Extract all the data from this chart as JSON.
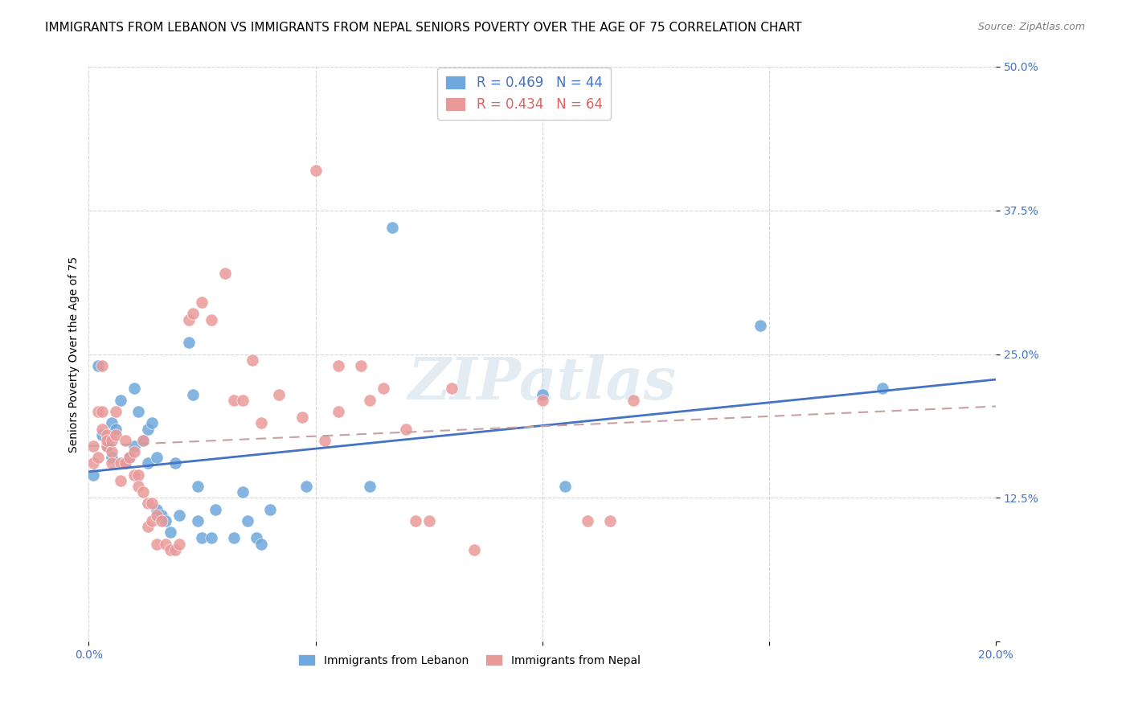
{
  "title": "IMMIGRANTS FROM LEBANON VS IMMIGRANTS FROM NEPAL SENIORS POVERTY OVER THE AGE OF 75 CORRELATION CHART",
  "source": "Source: ZipAtlas.com",
  "xlabel_label": "",
  "ylabel_label": "Seniors Poverty Over the Age of 75",
  "xlim": [
    0.0,
    0.2
  ],
  "ylim": [
    0.0,
    0.5
  ],
  "xticks": [
    0.0,
    0.05,
    0.1,
    0.15,
    0.2
  ],
  "yticks": [
    0.0,
    0.125,
    0.25,
    0.375,
    0.5
  ],
  "xtick_labels": [
    "0.0%",
    "",
    "",
    "",
    "20.0%"
  ],
  "ytick_labels": [
    "",
    "12.5%",
    "25.0%",
    "37.5%",
    "50.0%"
  ],
  "lebanon_color": "#6fa8dc",
  "nepal_color": "#ea9999",
  "lebanon_R": 0.469,
  "lebanon_N": 44,
  "nepal_R": 0.434,
  "nepal_N": 64,
  "lebanon_line_color": "#4472c4",
  "nepal_line_color": "#ea9999",
  "watermark": "ZIPatlas",
  "lebanon_scatter": [
    [
      0.001,
      0.145
    ],
    [
      0.002,
      0.24
    ],
    [
      0.003,
      0.18
    ],
    [
      0.004,
      0.17
    ],
    [
      0.005,
      0.16
    ],
    [
      0.005,
      0.19
    ],
    [
      0.006,
      0.185
    ],
    [
      0.007,
      0.21
    ],
    [
      0.008,
      0.155
    ],
    [
      0.009,
      0.16
    ],
    [
      0.01,
      0.17
    ],
    [
      0.01,
      0.22
    ],
    [
      0.011,
      0.2
    ],
    [
      0.012,
      0.175
    ],
    [
      0.013,
      0.155
    ],
    [
      0.013,
      0.185
    ],
    [
      0.014,
      0.19
    ],
    [
      0.015,
      0.16
    ],
    [
      0.015,
      0.115
    ],
    [
      0.016,
      0.11
    ],
    [
      0.017,
      0.105
    ],
    [
      0.018,
      0.095
    ],
    [
      0.019,
      0.155
    ],
    [
      0.02,
      0.11
    ],
    [
      0.022,
      0.26
    ],
    [
      0.023,
      0.215
    ],
    [
      0.024,
      0.105
    ],
    [
      0.024,
      0.135
    ],
    [
      0.025,
      0.09
    ],
    [
      0.027,
      0.09
    ],
    [
      0.028,
      0.115
    ],
    [
      0.032,
      0.09
    ],
    [
      0.034,
      0.13
    ],
    [
      0.035,
      0.105
    ],
    [
      0.037,
      0.09
    ],
    [
      0.038,
      0.085
    ],
    [
      0.04,
      0.115
    ],
    [
      0.048,
      0.135
    ],
    [
      0.062,
      0.135
    ],
    [
      0.067,
      0.36
    ],
    [
      0.1,
      0.215
    ],
    [
      0.105,
      0.135
    ],
    [
      0.148,
      0.275
    ],
    [
      0.175,
      0.22
    ]
  ],
  "nepal_scatter": [
    [
      0.001,
      0.155
    ],
    [
      0.001,
      0.17
    ],
    [
      0.002,
      0.2
    ],
    [
      0.002,
      0.16
    ],
    [
      0.003,
      0.185
    ],
    [
      0.003,
      0.24
    ],
    [
      0.003,
      0.2
    ],
    [
      0.004,
      0.17
    ],
    [
      0.004,
      0.18
    ],
    [
      0.004,
      0.175
    ],
    [
      0.005,
      0.165
    ],
    [
      0.005,
      0.155
    ],
    [
      0.005,
      0.175
    ],
    [
      0.006,
      0.2
    ],
    [
      0.006,
      0.18
    ],
    [
      0.007,
      0.155
    ],
    [
      0.007,
      0.14
    ],
    [
      0.008,
      0.175
    ],
    [
      0.008,
      0.155
    ],
    [
      0.009,
      0.16
    ],
    [
      0.01,
      0.145
    ],
    [
      0.01,
      0.165
    ],
    [
      0.011,
      0.145
    ],
    [
      0.011,
      0.135
    ],
    [
      0.012,
      0.13
    ],
    [
      0.012,
      0.175
    ],
    [
      0.013,
      0.12
    ],
    [
      0.013,
      0.1
    ],
    [
      0.014,
      0.12
    ],
    [
      0.014,
      0.105
    ],
    [
      0.015,
      0.11
    ],
    [
      0.015,
      0.085
    ],
    [
      0.016,
      0.105
    ],
    [
      0.017,
      0.085
    ],
    [
      0.018,
      0.08
    ],
    [
      0.019,
      0.08
    ],
    [
      0.02,
      0.085
    ],
    [
      0.022,
      0.28
    ],
    [
      0.023,
      0.285
    ],
    [
      0.025,
      0.295
    ],
    [
      0.027,
      0.28
    ],
    [
      0.03,
      0.32
    ],
    [
      0.032,
      0.21
    ],
    [
      0.034,
      0.21
    ],
    [
      0.036,
      0.245
    ],
    [
      0.038,
      0.19
    ],
    [
      0.042,
      0.215
    ],
    [
      0.047,
      0.195
    ],
    [
      0.05,
      0.41
    ],
    [
      0.052,
      0.175
    ],
    [
      0.055,
      0.2
    ],
    [
      0.055,
      0.24
    ],
    [
      0.06,
      0.24
    ],
    [
      0.062,
      0.21
    ],
    [
      0.065,
      0.22
    ],
    [
      0.07,
      0.185
    ],
    [
      0.072,
      0.105
    ],
    [
      0.075,
      0.105
    ],
    [
      0.08,
      0.22
    ],
    [
      0.085,
      0.08
    ],
    [
      0.1,
      0.21
    ],
    [
      0.11,
      0.105
    ],
    [
      0.115,
      0.105
    ],
    [
      0.12,
      0.21
    ]
  ],
  "background_color": "#ffffff",
  "grid_color": "#cccccc",
  "axis_color": "#4472c4",
  "title_fontsize": 11,
  "axis_label_fontsize": 10,
  "tick_fontsize": 10,
  "legend_fontsize": 12
}
